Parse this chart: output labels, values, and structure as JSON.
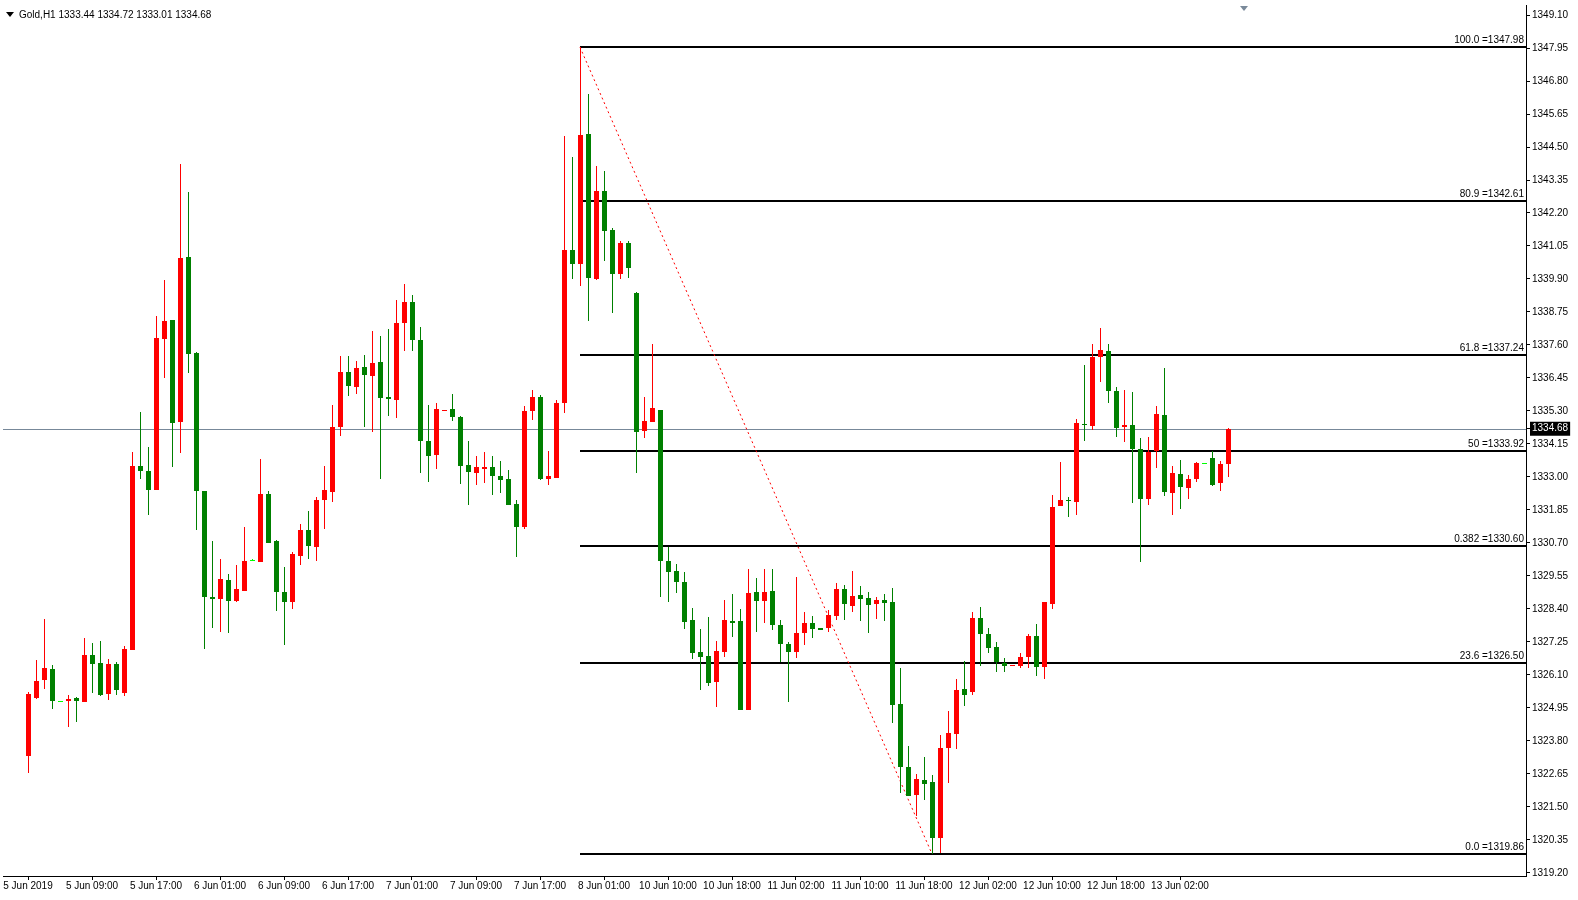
{
  "chart_data": {
    "type": "candlestick",
    "title": "Gold,H1 1333.44 1334.72 1333.01 1334.68",
    "categories": [
      "5 Jun 2019",
      null,
      null,
      null,
      null,
      null,
      null,
      null,
      "5 Jun 09:00",
      null,
      null,
      null,
      null,
      null,
      null,
      null,
      "5 Jun 17:00",
      null,
      null,
      null,
      null,
      null,
      null,
      null,
      "6 Jun 01:00",
      null,
      null,
      null,
      null,
      null,
      null,
      null,
      "6 Jun 09:00",
      null,
      null,
      null,
      null,
      null,
      null,
      null,
      "6 Jun 17:00",
      null,
      null,
      null,
      null,
      null,
      null,
      null,
      "7 Jun 01:00",
      null,
      null,
      null,
      null,
      null,
      null,
      null,
      "7 Jun 09:00",
      null,
      null,
      null,
      null,
      null,
      null,
      null,
      "7 Jun 17:00",
      null,
      null,
      null,
      null,
      null,
      null,
      null,
      "8 Jun 01:00",
      null,
      null,
      null,
      null,
      null,
      null,
      null,
      "10 Jun 10:00",
      null,
      null,
      null,
      null,
      null,
      null,
      null,
      "10 Jun 18:00",
      null,
      null,
      null,
      null,
      null,
      null,
      null,
      "11 Jun 02:00",
      null,
      null,
      null,
      null,
      null,
      null,
      null,
      "11 Jun 10:00",
      null,
      null,
      null,
      null,
      null,
      null,
      null,
      "11 Jun 18:00",
      null,
      null,
      null,
      null,
      null,
      null,
      null,
      "12 Jun 02:00",
      null,
      null,
      null,
      null,
      null,
      null,
      null,
      "12 Jun 10:00",
      null,
      null,
      null,
      null,
      null,
      null,
      null,
      "12 Jun 18:00",
      null,
      null,
      null,
      null,
      null,
      null,
      null,
      "13 Jun 02:00",
      null,
      null,
      null,
      null,
      null,
      null,
      null,
      null,
      null,
      null,
      null,
      null,
      null,
      null,
      null,
      null,
      null,
      null,
      null,
      null,
      null,
      null,
      null,
      null,
      null,
      null,
      null,
      null,
      null,
      null,
      null,
      null,
      null,
      null,
      null,
      null,
      null,
      null,
      null,
      null,
      null,
      null,
      null
    ],
    "ohlc": [
      [
        1323.27,
        1325.5,
        1322.67,
        1325.43
      ],
      [
        1325.3,
        1326.62,
        1325.26,
        1325.88
      ],
      [
        1325.92,
        1328.06,
        1325.61,
        1326.33
      ],
      [
        1326.3,
        1326.44,
        1324.91,
        1325.19
      ],
      [
        1325.19,
        1325.19,
        1325.19,
        1325.19
      ],
      [
        1325.19,
        1325.39,
        1324.3,
        1325.26
      ],
      [
        1325.29,
        1325.33,
        1324.47,
        1325.19
      ],
      [
        1325.15,
        1327.37,
        1325.15,
        1326.79
      ],
      [
        1326.79,
        1327.22,
        1325.48,
        1326.48
      ],
      [
        1326.51,
        1327.27,
        1325.36,
        1325.4
      ],
      [
        1325.43,
        1326.65,
        1325.22,
        1326.48
      ],
      [
        1326.48,
        1326.56,
        1325.4,
        1325.57
      ],
      [
        1325.47,
        1327.1,
        1325.36,
        1327.0
      ],
      [
        1326.97,
        1333.87,
        1326.97,
        1333.38
      ],
      [
        1333.38,
        1335.26,
        1332.94,
        1333.21
      ],
      [
        1333.21,
        1334.04,
        1331.67,
        1332.54
      ],
      [
        1332.55,
        1338.6,
        1332.55,
        1337.83
      ],
      [
        1337.81,
        1339.88,
        1336.46,
        1338.44
      ],
      [
        1338.47,
        1338.47,
        1333.33,
        1334.88
      ],
      [
        1334.91,
        1343.92,
        1333.82,
        1340.63
      ],
      [
        1340.67,
        1342.92,
        1336.63,
        1337.3
      ],
      [
        1337.33,
        1337.37,
        1331.15,
        1332.51
      ],
      [
        1332.51,
        1332.51,
        1327.0,
        1328.81
      ],
      [
        1328.8,
        1330.77,
        1327.73,
        1328.74
      ],
      [
        1328.76,
        1330.14,
        1327.59,
        1329.44
      ],
      [
        1329.4,
        1329.61,
        1327.57,
        1328.68
      ],
      [
        1328.68,
        1329.93,
        1328.64,
        1329.09
      ],
      [
        1329.03,
        1331.24,
        1329.03,
        1330.07
      ],
      [
        1330.09,
        1330.13,
        1330.06,
        1330.09
      ],
      [
        1330.04,
        1333.63,
        1330.04,
        1332.4
      ],
      [
        1332.4,
        1332.52,
        1330.71,
        1330.71
      ],
      [
        1330.77,
        1330.8,
        1328.34,
        1329.0
      ],
      [
        1328.99,
        1329.87,
        1327.15,
        1328.65
      ],
      [
        1328.65,
        1330.39,
        1328.41,
        1330.31
      ],
      [
        1330.25,
        1331.36,
        1329.94,
        1331.15
      ],
      [
        1331.15,
        1331.81,
        1330.15,
        1330.59
      ],
      [
        1330.57,
        1332.29,
        1330.08,
        1332.2
      ],
      [
        1332.2,
        1333.38,
        1331.18,
        1332.54
      ],
      [
        1332.48,
        1335.51,
        1332.13,
        1334.74
      ],
      [
        1334.74,
        1337.21,
        1334.43,
        1336.66
      ],
      [
        1336.66,
        1337.21,
        1335.82,
        1336.17
      ],
      [
        1336.13,
        1337.04,
        1335.89,
        1336.8
      ],
      [
        1336.83,
        1337.25,
        1334.75,
        1336.56
      ],
      [
        1336.52,
        1338.09,
        1334.57,
        1336.97
      ],
      [
        1337.01,
        1337.91,
        1332.93,
        1335.76
      ],
      [
        1335.79,
        1338.16,
        1335.13,
        1335.72
      ],
      [
        1335.69,
        1339.17,
        1335.07,
        1338.37
      ],
      [
        1338.38,
        1339.73,
        1337.4,
        1339.1
      ],
      [
        1339.1,
        1339.34,
        1337.4,
        1337.79
      ],
      [
        1337.77,
        1338.24,
        1333.15,
        1334.26
      ],
      [
        1334.26,
        1335.51,
        1332.83,
        1333.74
      ],
      [
        1333.78,
        1335.57,
        1333.26,
        1335.37
      ],
      [
        1335.33,
        1335.33,
        1335.33,
        1335.33
      ],
      [
        1335.37,
        1335.89,
        1334.96,
        1335.1
      ],
      [
        1335.1,
        1335.14,
        1332.77,
        1333.38
      ],
      [
        1333.42,
        1334.25,
        1332.03,
        1333.17
      ],
      [
        1333.14,
        1333.72,
        1332.73,
        1333.35
      ],
      [
        1333.28,
        1333.87,
        1332.79,
        1333.35
      ],
      [
        1333.35,
        1333.72,
        1332.38,
        1333.05
      ],
      [
        1333.03,
        1333.55,
        1332.44,
        1332.91
      ],
      [
        1332.93,
        1333.23,
        1332.03,
        1332.03
      ],
      [
        1332.07,
        1332.19,
        1330.2,
        1331.25
      ],
      [
        1331.25,
        1335.48,
        1331.17,
        1335.31
      ],
      [
        1335.31,
        1336.03,
        1334.98,
        1335.8
      ],
      [
        1335.8,
        1335.86,
        1332.88,
        1332.92
      ],
      [
        1332.94,
        1333.9,
        1332.73,
        1333.03
      ],
      [
        1332.98,
        1335.69,
        1332.98,
        1335.59
      ],
      [
        1335.57,
        1344.88,
        1335.24,
        1340.91
      ],
      [
        1340.91,
        1344.15,
        1339.89,
        1340.43
      ],
      [
        1340.43,
        1347.98,
        1339.65,
        1344.93
      ],
      [
        1344.95,
        1346.34,
        1338.45,
        1339.95
      ],
      [
        1339.91,
        1343.85,
        1339.85,
        1342.97
      ],
      [
        1342.97,
        1343.67,
        1340.51,
        1341.56
      ],
      [
        1341.61,
        1341.69,
        1338.7,
        1340.06
      ],
      [
        1340.09,
        1341.21,
        1339.89,
        1341.16
      ],
      [
        1341.14,
        1341.23,
        1339.95,
        1340.29
      ],
      [
        1339.42,
        1339.45,
        1333.13,
        1334.58
      ],
      [
        1334.6,
        1335.8,
        1334.37,
        1334.95
      ],
      [
        1334.91,
        1337.63,
        1334.91,
        1335.4
      ],
      [
        1335.33,
        1335.33,
        1328.82,
        1330.08
      ],
      [
        1330.07,
        1330.57,
        1328.65,
        1329.7
      ],
      [
        1329.72,
        1329.95,
        1328.96,
        1329.35
      ],
      [
        1329.34,
        1329.69,
        1327.71,
        1327.95
      ],
      [
        1328.01,
        1328.43,
        1326.66,
        1326.87
      ],
      [
        1326.9,
        1327.7,
        1325.57,
        1326.73
      ],
      [
        1326.75,
        1328.11,
        1325.71,
        1325.82
      ],
      [
        1325.86,
        1327.28,
        1324.99,
        1326.93
      ],
      [
        1326.91,
        1328.71,
        1326.73,
        1328.01
      ],
      [
        1327.99,
        1328.92,
        1327.43,
        1327.92
      ],
      [
        1327.98,
        1328.39,
        1324.87,
        1324.87
      ],
      [
        1324.87,
        1329.8,
        1324.87,
        1328.94
      ],
      [
        1328.98,
        1329.49,
        1327.6,
        1328.68
      ],
      [
        1328.68,
        1329.79,
        1327.9,
        1328.98
      ],
      [
        1329.02,
        1329.79,
        1327.66,
        1327.84
      ],
      [
        1327.84,
        1328.01,
        1326.56,
        1327.16
      ],
      [
        1327.17,
        1327.25,
        1325.16,
        1326.91
      ],
      [
        1326.91,
        1329.52,
        1326.7,
        1327.55
      ],
      [
        1327.57,
        1328.3,
        1327.14,
        1327.9
      ],
      [
        1327.9,
        1328.15,
        1327.39,
        1327.69
      ],
      [
        1327.72,
        1327.72,
        1327.67,
        1327.67
      ],
      [
        1327.72,
        1328.36,
        1327.6,
        1328.19
      ],
      [
        1328.16,
        1329.31,
        1328.01,
        1329.09
      ],
      [
        1329.09,
        1329.24,
        1328.01,
        1328.56
      ],
      [
        1328.51,
        1329.72,
        1328.3,
        1328.85
      ],
      [
        1328.89,
        1329.2,
        1327.99,
        1328.74
      ],
      [
        1328.78,
        1328.99,
        1327.55,
        1328.54
      ],
      [
        1328.58,
        1328.81,
        1328.06,
        1328.71
      ],
      [
        1328.71,
        1328.92,
        1327.99,
        1328.61
      ],
      [
        1328.64,
        1329.13,
        1324.43,
        1325.06
      ],
      [
        1325.08,
        1326.34,
        1321.99,
        1322.89
      ],
      [
        1322.89,
        1323.62,
        1321.88,
        1321.88
      ],
      [
        1321.9,
        1322.64,
        1321.18,
        1322.47
      ],
      [
        1322.43,
        1323.25,
        1321.74,
        1322.3
      ],
      [
        1322.36,
        1322.61,
        1319.86,
        1320.42
      ],
      [
        1320.42,
        1324.0,
        1319.9,
        1323.55
      ],
      [
        1323.56,
        1324.84,
        1322.34,
        1324.07
      ],
      [
        1324.05,
        1325.95,
        1323.51,
        1325.57
      ],
      [
        1325.61,
        1326.58,
        1325.02,
        1325.41
      ],
      [
        1325.5,
        1328.28,
        1325.41,
        1328.08
      ],
      [
        1328.08,
        1328.45,
        1326.42,
        1327.53
      ],
      [
        1327.52,
        1327.73,
        1326.87,
        1327.05
      ],
      [
        1327.07,
        1327.24,
        1326.21,
        1326.55
      ],
      [
        1326.51,
        1326.68,
        1326.2,
        1326.41
      ],
      [
        1326.42,
        1326.44,
        1326.42,
        1326.44
      ],
      [
        1326.42,
        1326.86,
        1326.33,
        1326.71
      ],
      [
        1326.72,
        1327.51,
        1326.33,
        1327.47
      ],
      [
        1327.46,
        1327.87,
        1326.07,
        1326.38
      ],
      [
        1326.38,
        1328.64,
        1325.97,
        1328.64
      ],
      [
        1328.58,
        1332.37,
        1328.41,
        1331.94
      ],
      [
        1331.97,
        1333.52,
        1331.97,
        1332.19
      ],
      [
        1332.2,
        1332.3,
        1331.62,
        1332.15
      ],
      [
        1332.11,
        1335.02,
        1331.69,
        1334.89
      ],
      [
        1334.86,
        1336.89,
        1334.26,
        1334.81
      ],
      [
        1334.77,
        1337.64,
        1334.64,
        1337.19
      ],
      [
        1337.19,
        1338.18,
        1336.3,
        1337.43
      ],
      [
        1337.39,
        1337.64,
        1335.56,
        1336.01
      ],
      [
        1335.99,
        1336.12,
        1334.38,
        1334.72
      ],
      [
        1334.75,
        1336.04,
        1334.22,
        1334.81
      ],
      [
        1334.81,
        1335.97,
        1332.1,
        1333.96
      ],
      [
        1333.98,
        1334.34,
        1330.05,
        1332.24
      ],
      [
        1332.23,
        1334.4,
        1332.01,
        1333.87
      ],
      [
        1333.9,
        1335.48,
        1333.32,
        1335.18
      ],
      [
        1335.16,
        1336.8,
        1332.32,
        1332.46
      ],
      [
        1332.43,
        1333.38,
        1331.67,
        1333.15
      ],
      [
        1333.11,
        1333.58,
        1331.88,
        1332.66
      ],
      [
        1332.62,
        1333.06,
        1332.24,
        1332.93
      ],
      [
        1332.93,
        1333.51,
        1332.82,
        1333.49
      ],
      [
        1333.48,
        1333.5,
        1333.46,
        1333.48
      ],
      [
        1333.65,
        1333.91,
        1332.7,
        1332.73
      ],
      [
        1332.78,
        1333.55,
        1332.5,
        1333.45
      ],
      [
        1333.44,
        1334.72,
        1333.01,
        1334.68
      ],
      null,
      null,
      null,
      null,
      null,
      null,
      null,
      null,
      null,
      null,
      null,
      null,
      null,
      null,
      null,
      null,
      null,
      null,
      null,
      null,
      null,
      null,
      null,
      null,
      null,
      null,
      null,
      null,
      null,
      null,
      null,
      null,
      null,
      null,
      null,
      null,
      null
    ],
    "colors": [
      "#ff0000",
      "#ff0000",
      "#ff0000",
      "#008000",
      "#00ff00",
      "#ff0000",
      "#008000",
      "#ff0000",
      "#008000",
      "#008000",
      "#ff0000",
      "#008000",
      "#ff0000",
      "#ff0000",
      "#008000",
      "#008000",
      "#ff0000",
      "#ff0000",
      "#008000",
      "#ff0000",
      "#008000",
      "#008000",
      "#008000",
      "#008000",
      "#ff0000",
      "#008000",
      "#ff0000",
      "#ff0000",
      "#00ff00",
      "#ff0000",
      "#008000",
      "#008000",
      "#008000",
      "#ff0000",
      "#ff0000",
      "#008000",
      "#ff0000",
      "#ff0000",
      "#ff0000",
      "#ff0000",
      "#008000",
      "#ff0000",
      "#008000",
      "#ff0000",
      "#008000",
      "#008000",
      "#ff0000",
      "#ff0000",
      "#008000",
      "#008000",
      "#008000",
      "#ff0000",
      "#ff0000",
      "#008000",
      "#008000",
      "#008000",
      "#ff0000",
      "#ff0000",
      "#008000",
      "#008000",
      "#008000",
      "#008000",
      "#ff0000",
      "#ff0000",
      "#008000",
      "#ff0000",
      "#ff0000",
      "#ff0000",
      "#008000",
      "#ff0000",
      "#008000",
      "#ff0000",
      "#008000",
      "#008000",
      "#ff0000",
      "#008000",
      "#008000",
      "#ff0000",
      "#ff0000",
      "#008000",
      "#008000",
      "#008000",
      "#008000",
      "#008000",
      "#008000",
      "#008000",
      "#ff0000",
      "#ff0000",
      "#008000",
      "#008000",
      "#ff0000",
      "#008000",
      "#ff0000",
      "#008000",
      "#008000",
      "#008000",
      "#ff0000",
      "#ff0000",
      "#008000",
      "#008000",
      "#ff0000",
      "#ff0000",
      "#008000",
      "#ff0000",
      "#008000",
      "#008000",
      "#ff0000",
      "#008000",
      "#008000",
      "#008000",
      "#008000",
      "#ff0000",
      "#008000",
      "#008000",
      "#ff0000",
      "#ff0000",
      "#ff0000",
      "#008000",
      "#ff0000",
      "#008000",
      "#008000",
      "#008000",
      "#008000",
      "#ff0000",
      "#ff0000",
      "#ff0000",
      "#008000",
      "#ff0000",
      "#ff0000",
      "#ff0000",
      "#008000",
      "#ff0000",
      "#008000",
      "#ff0000",
      "#ff0000",
      "#008000",
      "#008000",
      "#ff0000",
      "#008000",
      "#008000",
      "#ff0000",
      "#ff0000",
      "#008000",
      "#ff0000",
      "#008000",
      "#ff0000",
      "#ff0000",
      "#00ff00",
      "#008000",
      "#ff0000",
      "#ff0000",
      null,
      null,
      null,
      null,
      null,
      null,
      null,
      null,
      null,
      null,
      null,
      null,
      null,
      null,
      null,
      null,
      null,
      null,
      null,
      null,
      null,
      null,
      null,
      null,
      null,
      null,
      null,
      null,
      null,
      null,
      null,
      null,
      null,
      null,
      null,
      null,
      null
    ],
    "series": [
      {
        "type": "line",
        "color": "#ff0000",
        "line_style": "dotted",
        "values": [
          null,
          null,
          null,
          null,
          null,
          null,
          null,
          null,
          null,
          null,
          null,
          null,
          null,
          null,
          null,
          null,
          null,
          null,
          null,
          null,
          null,
          null,
          null,
          null,
          null,
          null,
          null,
          null,
          null,
          null,
          null,
          null,
          null,
          null,
          null,
          null,
          null,
          null,
          null,
          null,
          null,
          null,
          null,
          null,
          null,
          null,
          null,
          null,
          null,
          null,
          null,
          null,
          null,
          null,
          null,
          null,
          null,
          null,
          null,
          null,
          null,
          null,
          null,
          null,
          null,
          null,
          null,
          null,
          null,
          1347.98,
          null,
          null,
          null,
          null,
          null,
          null,
          null,
          null,
          null,
          null,
          null,
          null,
          null,
          null,
          null,
          null,
          null,
          null,
          null,
          null,
          null,
          null,
          null,
          null,
          null,
          null,
          null,
          null,
          null,
          null,
          null,
          null,
          null,
          null,
          null,
          null,
          null,
          null,
          null,
          null,
          null,
          null,
          null,
          1319.86,
          null,
          null,
          null,
          null,
          null,
          null,
          null,
          null,
          null,
          null,
          null,
          null,
          null,
          null,
          null,
          null,
          null,
          null,
          null,
          null,
          null,
          null,
          null,
          null,
          null,
          null,
          null,
          null,
          null,
          null,
          null,
          null,
          null,
          null,
          null,
          null,
          null,
          null,
          null,
          null,
          null,
          null,
          null,
          null,
          null,
          null,
          null,
          null,
          null,
          null,
          null,
          null,
          null,
          null,
          null,
          null,
          null,
          null,
          null,
          null,
          null,
          null,
          null,
          null,
          null,
          null,
          null,
          null,
          null,
          null,
          null,
          null,
          null,
          null
        ]
      }
    ],
    "marker": "none",
    "ylim": [
      1319.09,
      1349.45
    ],
    "yticks": [
      {
        "value": 1319.2,
        "label": "1319.20"
      },
      {
        "value": 1320.35,
        "label": "1320.35"
      },
      {
        "value": 1321.5,
        "label": "1321.50"
      },
      {
        "value": 1322.65,
        "label": "1322.65"
      },
      {
        "value": 1323.8,
        "label": "1323.80"
      },
      {
        "value": 1324.95,
        "label": "1324.95"
      },
      {
        "value": 1326.1,
        "label": "1326.10"
      },
      {
        "value": 1327.25,
        "label": "1327.25"
      },
      {
        "value": 1328.4,
        "label": "1328.40"
      },
      {
        "value": 1329.55,
        "label": "1329.55"
      },
      {
        "value": 1330.7,
        "label": "1330.70"
      },
      {
        "value": 1331.85,
        "label": "1331.85"
      },
      {
        "value": 1333,
        "label": "1333.00"
      },
      {
        "value": 1334.15,
        "label": "1334.15"
      },
      {
        "value": 1334.68,
        "label": "1334.68"
      },
      {
        "value": 1335.3,
        "label": "1335.30"
      },
      {
        "value": 1336.45,
        "label": "1336.45"
      },
      {
        "value": 1337.6,
        "label": "1337.60"
      },
      {
        "value": 1338.75,
        "label": "1338.75"
      },
      {
        "value": 1339.9,
        "label": "1339.90"
      },
      {
        "value": 1341.05,
        "label": "1341.05"
      },
      {
        "value": 1342.2,
        "label": "1342.20"
      },
      {
        "value": 1343.35,
        "label": "1343.35"
      },
      {
        "value": 1344.5,
        "label": "1344.50"
      },
      {
        "value": 1345.65,
        "label": "1345.65"
      },
      {
        "value": 1346.8,
        "label": "1346.80"
      },
      {
        "value": 1347.95,
        "label": "1347.95"
      },
      {
        "value": 1349.1,
        "label": "1349.10"
      }
    ],
    "ref_lines": [
      {
        "axis": "y",
        "value": 1347.98,
        "label": "100.0 =1347.98",
        "color": "#000000"
      },
      {
        "axis": "y",
        "value": 1342.61,
        "label": "80.9 =1342.61",
        "color": "#000000"
      },
      {
        "axis": "y",
        "value": 1337.24,
        "label": "61.8 =1337.24",
        "color": "#000000"
      },
      {
        "axis": "y",
        "value": 1333.92,
        "label": "50 =1333.92",
        "color": "#000000"
      },
      {
        "axis": "y",
        "value": 1330.6,
        "label": "0.382 =1330.60",
        "color": "#000000"
      },
      {
        "axis": "y",
        "value": 1326.5,
        "label": "23.6 =1326.50",
        "color": "#000000"
      },
      {
        "axis": "y",
        "value": 1319.86,
        "label": "0.0 =1319.86",
        "color": "#000000"
      },
      {
        "axis": "y",
        "value": 1334.68,
        "color": "#778899"
      }
    ]
  }
}
